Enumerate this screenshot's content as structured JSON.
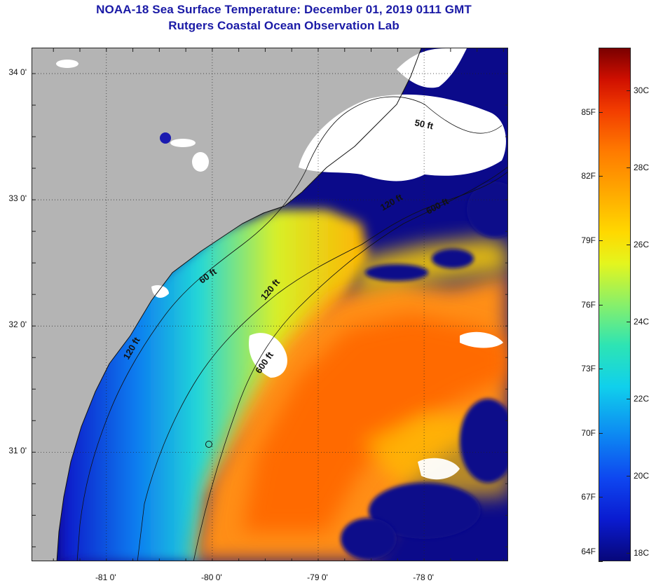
{
  "title": {
    "line1": "NOAA-18 Sea Surface Temperature:  December 01, 2019 0111 GMT",
    "line2": "Rutgers Coastal Ocean Observation Lab"
  },
  "map": {
    "lat_labels": [
      "34 0'",
      "33 0'",
      "32 0'",
      "31 0'"
    ],
    "lon_labels": [
      "-81 0'",
      "-80 0'",
      "-79 0'",
      "-78 0'"
    ],
    "lat_values": [
      34,
      33,
      32,
      31
    ],
    "lon_values": [
      -81,
      -80,
      -79,
      -78
    ],
    "extent": {
      "lon_min": -81.7,
      "lon_max": -77.2,
      "lat_min": 30.13,
      "lat_max": 34.2
    },
    "contour_labels": [
      "50 ft",
      "120 ft",
      "600 ft",
      "60 ft",
      "120 ft",
      "600 ft",
      "120 ft"
    ],
    "colors": {
      "land": "#b4b4b4",
      "cloud": "#ffffff",
      "cold": "#0b0a8a",
      "warm": "#ff7a08"
    }
  },
  "colorbar": {
    "fahrenheit_labels": [
      "85F",
      "82F",
      "79F",
      "76F",
      "73F",
      "70F",
      "67F",
      "64F"
    ],
    "fahrenheit_values": [
      85,
      82,
      79,
      76,
      73,
      70,
      67,
      64
    ],
    "celsius_labels": [
      "30C",
      "28C",
      "26C",
      "24C",
      "22C",
      "20C",
      "18C"
    ],
    "celsius_values": [
      30,
      28,
      26,
      24,
      22,
      20,
      18
    ],
    "range_f": [
      64,
      88
    ]
  }
}
